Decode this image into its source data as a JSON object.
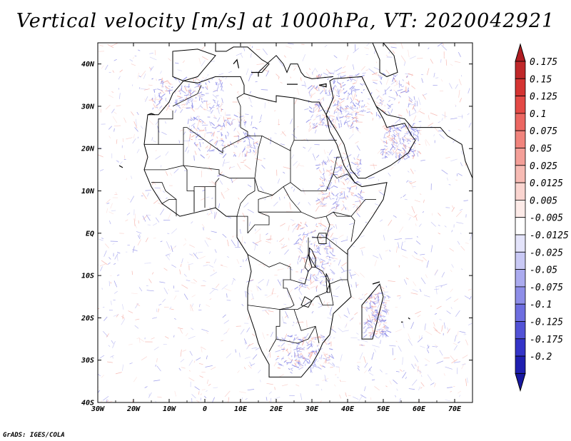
{
  "title": "Vertical velocity [m/s] at 1000hPa, VT: 2020042921",
  "credit": "GrADS: IGES/COLA",
  "map": {
    "lon_range": [
      -30,
      75
    ],
    "lat_range": [
      -40,
      45
    ],
    "lat_ticks": [
      {
        "value": 40,
        "label": "40N"
      },
      {
        "value": 30,
        "label": "30N"
      },
      {
        "value": 20,
        "label": "20N"
      },
      {
        "value": 10,
        "label": "10N"
      },
      {
        "value": 0,
        "label": "EQ"
      },
      {
        "value": -10,
        "label": "10S"
      },
      {
        "value": -20,
        "label": "20S"
      },
      {
        "value": -30,
        "label": "30S"
      },
      {
        "value": -40,
        "label": "40S"
      }
    ],
    "lon_ticks": [
      {
        "value": -30,
        "label": "30W"
      },
      {
        "value": -20,
        "label": "20W"
      },
      {
        "value": -10,
        "label": "10W"
      },
      {
        "value": 0,
        "label": "0"
      },
      {
        "value": 10,
        "label": "10E"
      },
      {
        "value": 20,
        "label": "20E"
      },
      {
        "value": 30,
        "label": "30E"
      },
      {
        "value": 40,
        "label": "40E"
      },
      {
        "value": 50,
        "label": "50E"
      },
      {
        "value": 60,
        "label": "60E"
      },
      {
        "value": 70,
        "label": "70E"
      }
    ],
    "africa_outline": [
      [
        -17,
        21
      ],
      [
        -16,
        28
      ],
      [
        -13,
        28
      ],
      [
        -10,
        31
      ],
      [
        -9,
        33
      ],
      [
        -6,
        36
      ],
      [
        -2,
        35.5
      ],
      [
        3,
        37
      ],
      [
        10,
        37
      ],
      [
        11,
        35
      ],
      [
        11,
        33
      ],
      [
        15,
        32
      ],
      [
        20,
        31
      ],
      [
        20,
        32.5
      ],
      [
        25,
        32
      ],
      [
        30,
        31
      ],
      [
        32,
        31
      ],
      [
        34,
        28
      ],
      [
        35,
        24
      ],
      [
        37,
        21
      ],
      [
        39,
        16
      ],
      [
        42,
        12
      ],
      [
        44,
        11
      ],
      [
        51,
        12
      ],
      [
        50,
        8
      ],
      [
        47,
        4
      ],
      [
        43,
        -1
      ],
      [
        40,
        -4
      ],
      [
        40,
        -11
      ],
      [
        41,
        -15
      ],
      [
        36,
        -19
      ],
      [
        35,
        -24
      ],
      [
        33,
        -26
      ],
      [
        32,
        -28
      ],
      [
        30,
        -31
      ],
      [
        27,
        -34
      ],
      [
        22,
        -34
      ],
      [
        18,
        -34
      ],
      [
        18,
        -31
      ],
      [
        16,
        -28
      ],
      [
        15,
        -26
      ],
      [
        14,
        -23
      ],
      [
        12,
        -18
      ],
      [
        12,
        -13
      ],
      [
        13,
        -9
      ],
      [
        12,
        -5
      ],
      [
        9,
        -1
      ],
      [
        9,
        4
      ],
      [
        6,
        4
      ],
      [
        3,
        6
      ],
      [
        -2,
        5
      ],
      [
        -7,
        4
      ],
      [
        -12,
        7
      ],
      [
        -15,
        11
      ],
      [
        -17,
        15
      ],
      [
        -16,
        18
      ],
      [
        -17,
        21
      ]
    ],
    "arabia_outline": [
      [
        34,
        28
      ],
      [
        36,
        32
      ],
      [
        35,
        36
      ],
      [
        36,
        36.5
      ],
      [
        44,
        37
      ],
      [
        48,
        30
      ],
      [
        50,
        27
      ],
      [
        51,
        25
      ],
      [
        56,
        26
      ],
      [
        58,
        23
      ],
      [
        59,
        22
      ],
      [
        57,
        19
      ],
      [
        52,
        16
      ],
      [
        45,
        13
      ],
      [
        43,
        13
      ],
      [
        41,
        15
      ],
      [
        39,
        21
      ],
      [
        37,
        24
      ],
      [
        34,
        28
      ]
    ],
    "iberia_outline": [
      [
        -9,
        37
      ],
      [
        -9,
        43
      ],
      [
        -2,
        43.5
      ],
      [
        3,
        42
      ],
      [
        0,
        39
      ],
      [
        -2,
        37
      ],
      [
        -6,
        36
      ],
      [
        -9,
        37
      ]
    ],
    "europe_coast": [
      [
        3,
        45
      ],
      [
        3,
        43
      ],
      [
        6,
        43
      ],
      [
        8,
        44
      ],
      [
        12,
        44
      ],
      [
        16,
        41
      ],
      [
        18,
        40
      ],
      [
        16,
        38
      ],
      [
        15,
        38
      ],
      [
        18,
        40.5
      ],
      [
        20,
        42
      ],
      [
        22,
        40
      ],
      [
        23,
        38
      ],
      [
        24,
        40
      ],
      [
        26,
        40
      ],
      [
        27,
        38
      ],
      [
        28,
        37
      ],
      [
        30,
        36.5
      ],
      [
        36,
        37
      ]
    ],
    "madagascar_outline": [
      [
        44,
        -25
      ],
      [
        47,
        -25
      ],
      [
        50,
        -15
      ],
      [
        49,
        -12
      ],
      [
        44,
        -17
      ],
      [
        44,
        -25
      ]
    ],
    "iran_coast": [
      [
        48,
        30
      ],
      [
        51,
        28
      ],
      [
        56,
        27
      ],
      [
        58,
        25
      ],
      [
        62,
        25
      ],
      [
        66,
        25
      ],
      [
        68,
        23
      ],
      [
        72,
        21
      ],
      [
        73,
        17
      ],
      [
        75,
        13
      ]
    ],
    "caspian_outline": [
      [
        47,
        45
      ],
      [
        50,
        45
      ],
      [
        53,
        42
      ],
      [
        54,
        38
      ],
      [
        51,
        37
      ],
      [
        49,
        38
      ],
      [
        49,
        41
      ],
      [
        47,
        45
      ]
    ],
    "borders": [
      [
        [
          -9,
          30
        ],
        [
          -2,
          33
        ],
        [
          -1,
          35
        ]
      ],
      [
        [
          -17,
          21
        ],
        [
          -13,
          21
        ],
        [
          -13,
          27
        ],
        [
          -9,
          27
        ],
        [
          -9,
          29
        ]
      ],
      [
        [
          -13,
          21
        ],
        [
          -6,
          21
        ],
        [
          -6,
          25
        ],
        [
          -5,
          25
        ],
        [
          5,
          19
        ],
        [
          5,
          20
        ],
        [
          12,
          23
        ],
        [
          12,
          24
        ],
        [
          10,
          25
        ],
        [
          10,
          30
        ],
        [
          9,
          32
        ],
        [
          11,
          33
        ]
      ],
      [
        [
          -6,
          16
        ],
        [
          4,
          15
        ],
        [
          4,
          14
        ],
        [
          7,
          13
        ],
        [
          12,
          13
        ],
        [
          14,
          13
        ]
      ],
      [
        [
          -11,
          15
        ],
        [
          -6,
          16
        ],
        [
          -5,
          15
        ],
        [
          -5,
          10
        ],
        [
          -3,
          10
        ],
        [
          -3,
          5
        ]
      ],
      [
        [
          -6,
          21
        ],
        [
          -6,
          16
        ]
      ],
      [
        [
          25,
          32
        ],
        [
          25,
          22
        ],
        [
          24,
          20
        ],
        [
          24,
          19.5
        ]
      ],
      [
        [
          25,
          22
        ],
        [
          37,
          22
        ]
      ],
      [
        [
          12,
          23
        ],
        [
          16,
          23
        ],
        [
          24,
          19.5
        ],
        [
          24,
          20
        ]
      ],
      [
        [
          16,
          23
        ],
        [
          15,
          20
        ],
        [
          14,
          13
        ],
        [
          15,
          10
        ],
        [
          19,
          9
        ],
        [
          22,
          11
        ],
        [
          24,
          8
        ]
      ],
      [
        [
          24,
          20
        ],
        [
          24,
          12
        ],
        [
          22,
          11
        ]
      ],
      [
        [
          24,
          12
        ],
        [
          27,
          10
        ],
        [
          34,
          10
        ],
        [
          36,
          14
        ],
        [
          37,
          18
        ],
        [
          38,
          18
        ]
      ],
      [
        [
          24,
          8
        ],
        [
          27,
          5
        ],
        [
          31,
          3.5
        ],
        [
          34,
          4
        ],
        [
          36,
          5
        ],
        [
          41,
          4
        ]
      ],
      [
        [
          41,
          4
        ],
        [
          42,
          3
        ],
        [
          41,
          -2
        ]
      ],
      [
        [
          34,
          4
        ],
        [
          35,
          2
        ],
        [
          34,
          -1
        ]
      ],
      [
        [
          30,
          -1
        ],
        [
          34,
          -1
        ],
        [
          37,
          -3
        ],
        [
          40,
          -5
        ]
      ],
      [
        [
          36,
          14
        ],
        [
          37,
          13
        ],
        [
          40,
          14
        ],
        [
          42,
          12
        ]
      ],
      [
        [
          36,
          5
        ],
        [
          37,
          4
        ],
        [
          41,
          4
        ],
        [
          45,
          8
        ],
        [
          48,
          8
        ]
      ],
      [
        [
          29,
          -1
        ],
        [
          29,
          -5
        ],
        [
          31,
          -8
        ],
        [
          33,
          -9
        ],
        [
          35,
          -12
        ],
        [
          34,
          -14
        ],
        [
          31,
          -15
        ],
        [
          30,
          -16
        ],
        [
          28,
          -17
        ],
        [
          26,
          -18
        ],
        [
          25,
          -18
        ],
        [
          21,
          -18
        ],
        [
          21,
          -22
        ],
        [
          20,
          -22
        ],
        [
          20,
          -25
        ],
        [
          18,
          -28
        ]
      ],
      [
        [
          21,
          -18
        ],
        [
          24,
          -17.5
        ],
        [
          25,
          -17
        ],
        [
          23,
          -13
        ],
        [
          22,
          -13
        ],
        [
          22,
          -11
        ],
        [
          24,
          -11
        ],
        [
          24,
          -8
        ],
        [
          21,
          -7
        ],
        [
          18,
          -8
        ],
        [
          12,
          -5
        ]
      ],
      [
        [
          12,
          -17
        ],
        [
          21,
          -18
        ]
      ],
      [
        [
          12,
          0
        ],
        [
          14,
          2
        ],
        [
          16,
          2
        ],
        [
          18,
          2
        ],
        [
          18,
          4
        ],
        [
          15,
          5
        ],
        [
          15,
          8
        ],
        [
          19,
          9
        ]
      ],
      [
        [
          15,
          5
        ],
        [
          24,
          5
        ],
        [
          27,
          5
        ]
      ],
      [
        [
          12,
          0
        ],
        [
          12,
          4
        ],
        [
          9,
          4
        ]
      ],
      [
        [
          9,
          4
        ],
        [
          10,
          7
        ],
        [
          12,
          9
        ],
        [
          14,
          10
        ],
        [
          14,
          13
        ]
      ],
      [
        [
          3,
          6
        ],
        [
          3,
          12
        ],
        [
          4,
          13
        ]
      ],
      [
        [
          0,
          6
        ],
        [
          0,
          11
        ]
      ],
      [
        [
          -3,
          5
        ],
        [
          -3,
          11
        ],
        [
          1,
          11
        ],
        [
          3,
          11
        ]
      ],
      [
        [
          -8,
          4
        ],
        [
          -8,
          8
        ],
        [
          -10,
          8
        ],
        [
          -12,
          7
        ]
      ],
      [
        [
          -8,
          8
        ],
        [
          -11,
          10
        ],
        [
          -12,
          12
        ],
        [
          -15,
          12
        ]
      ],
      [
        [
          -17,
          15
        ],
        [
          -12,
          15
        ],
        [
          -11,
          15
        ]
      ],
      [
        [
          25,
          -18
        ],
        [
          27,
          -23
        ],
        [
          31,
          -22
        ],
        [
          32,
          -26
        ]
      ],
      [
        [
          20,
          -25
        ],
        [
          26,
          -26
        ],
        [
          29,
          -25
        ],
        [
          31,
          -22
        ]
      ],
      [
        [
          35,
          -12
        ],
        [
          36,
          -17
        ],
        [
          33,
          -17
        ],
        [
          32,
          -15
        ],
        [
          31,
          -15
        ]
      ],
      [
        [
          40,
          -11
        ],
        [
          38,
          -11
        ],
        [
          35,
          -12
        ]
      ],
      [
        [
          29,
          -5
        ],
        [
          30,
          -8
        ],
        [
          29,
          -9
        ],
        [
          28,
          -12
        ]
      ],
      [
        [
          24,
          -11
        ],
        [
          28,
          -12
        ],
        [
          29,
          -9
        ],
        [
          28,
          -8
        ],
        [
          29,
          -5
        ]
      ]
    ],
    "lakes": [
      [
        [
          32,
          0
        ],
        [
          34,
          0
        ],
        [
          34,
          -2.5
        ],
        [
          32,
          -2.5
        ],
        [
          31.5,
          -1
        ],
        [
          32,
          0
        ]
      ],
      [
        [
          29.3,
          -3.5
        ],
        [
          30,
          -4
        ],
        [
          31,
          -6
        ],
        [
          31,
          -8
        ],
        [
          30,
          -8
        ],
        [
          29.2,
          -6
        ],
        [
          29.3,
          -3.5
        ]
      ],
      [
        [
          34,
          -9.5
        ],
        [
          34.8,
          -11
        ],
        [
          35,
          -14
        ],
        [
          34.3,
          -14
        ],
        [
          34,
          -11
        ],
        [
          34,
          -9.5
        ]
      ],
      [
        [
          28,
          -15
        ],
        [
          30,
          -16
        ],
        [
          29,
          -17.5
        ],
        [
          27,
          -17
        ],
        [
          28,
          -15
        ]
      ]
    ],
    "islands": [
      [
        [
          -16,
          28
        ],
        [
          -15,
          28.3
        ],
        [
          -14,
          28
        ]
      ],
      [
        [
          -24,
          16
        ],
        [
          -23,
          15.5
        ]
      ],
      [
        [
          8,
          40
        ],
        [
          9,
          41
        ],
        [
          9.5,
          39
        ]
      ],
      [
        [
          13,
          38
        ],
        [
          15,
          38
        ],
        [
          15,
          37
        ]
      ],
      [
        [
          23,
          35.2
        ],
        [
          26,
          35.2
        ]
      ],
      [
        [
          32,
          35
        ],
        [
          34,
          35.3
        ],
        [
          34,
          34.6
        ],
        [
          32,
          35
        ]
      ],
      [
        [
          55,
          -21
        ],
        [
          55.5,
          -21
        ]
      ],
      [
        [
          57,
          -20
        ],
        [
          57.5,
          -20.3
        ]
      ],
      [
        [
          47,
          -12
        ],
        [
          49,
          -11.5
        ]
      ]
    ]
  },
  "colorbar": {
    "levels": [
      {
        "label": "0.175",
        "color": "#c0282a"
      },
      {
        "label": "0.15",
        "color": "#d53432"
      },
      {
        "label": "0.125",
        "color": "#e44a46"
      },
      {
        "label": "0.1",
        "color": "#ec6762"
      },
      {
        "label": "0.075",
        "color": "#f1847d"
      },
      {
        "label": "0.05",
        "color": "#f49f98"
      },
      {
        "label": "0.025",
        "color": "#f7bbb4"
      },
      {
        "label": "0.0125",
        "color": "#fad5d0"
      },
      {
        "label": "0.005",
        "color": "#fdebe8"
      },
      {
        "label": "-0.005",
        "color": "#ffffff"
      },
      {
        "label": "-0.0125",
        "color": "#e4e4fb"
      },
      {
        "label": "-0.025",
        "color": "#c9c9f5"
      },
      {
        "label": "-0.05",
        "color": "#ababef"
      },
      {
        "label": "-0.075",
        "color": "#8e8ee8"
      },
      {
        "label": "-0.1",
        "color": "#6e6ee0"
      },
      {
        "label": "-0.125",
        "color": "#5252d6"
      },
      {
        "label": "-0.175",
        "color": "#3434c8"
      },
      {
        "label": "-0.2",
        "color": "#1f1fb0"
      }
    ],
    "top_arrow_color": "#b01d22",
    "bottom_arrow_color": "#1818a0"
  }
}
